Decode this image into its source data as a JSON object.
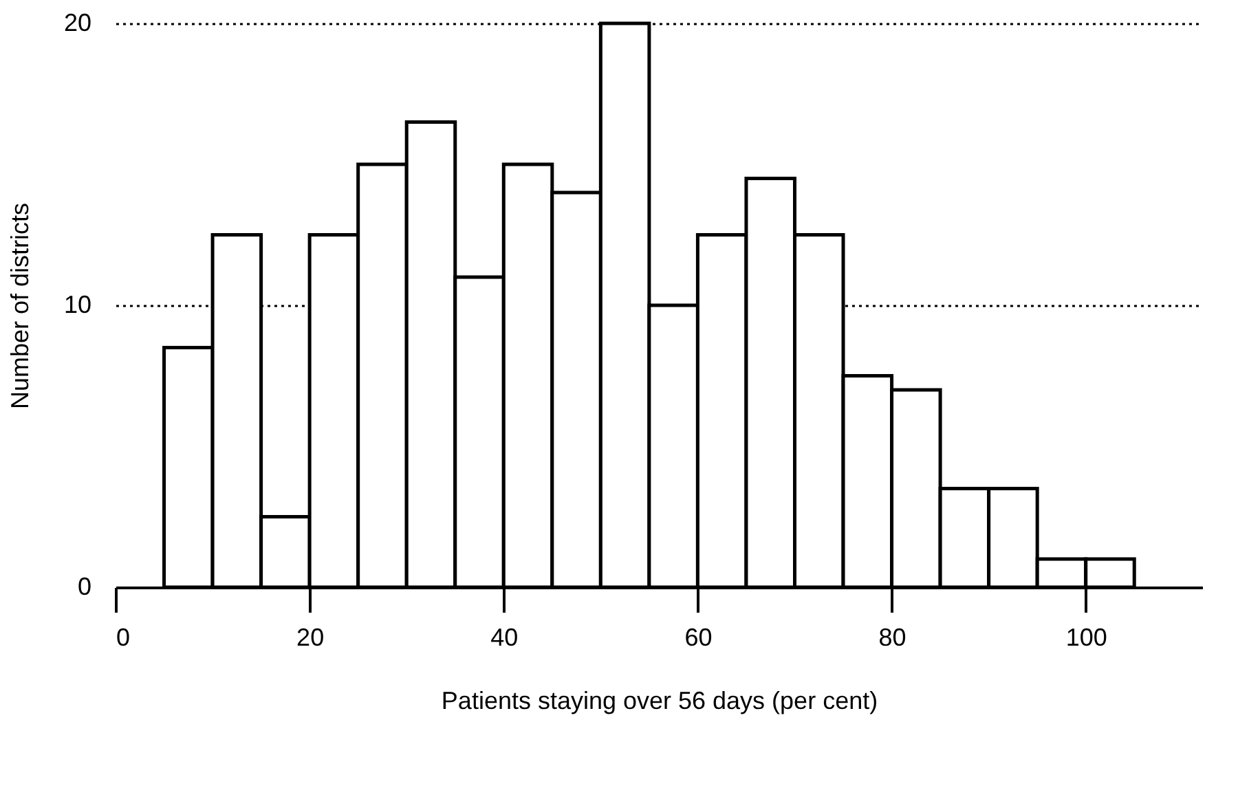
{
  "chart_data": {
    "type": "histogram",
    "xlabel": "Patients staying over 56 days (per cent)",
    "ylabel": "Number of districts",
    "bins": [
      5,
      10,
      15,
      20,
      25,
      30,
      35,
      40,
      45,
      50,
      55,
      60,
      65,
      70,
      75,
      80,
      85,
      90,
      95,
      100,
      105
    ],
    "values": [
      8.5,
      12.5,
      2.5,
      12.5,
      15,
      16.5,
      11,
      15,
      14,
      20,
      10,
      12.5,
      14.5,
      12.5,
      7.5,
      7,
      3.5,
      3.5,
      1,
      1
    ],
    "color": "#ffffff",
    "xlim": [
      0,
      112
    ],
    "xticks": [
      0,
      20,
      40,
      60,
      80,
      100
    ],
    "ylim": [
      0,
      20
    ],
    "yticks": [
      0,
      10,
      20
    ],
    "grid": "y"
  }
}
